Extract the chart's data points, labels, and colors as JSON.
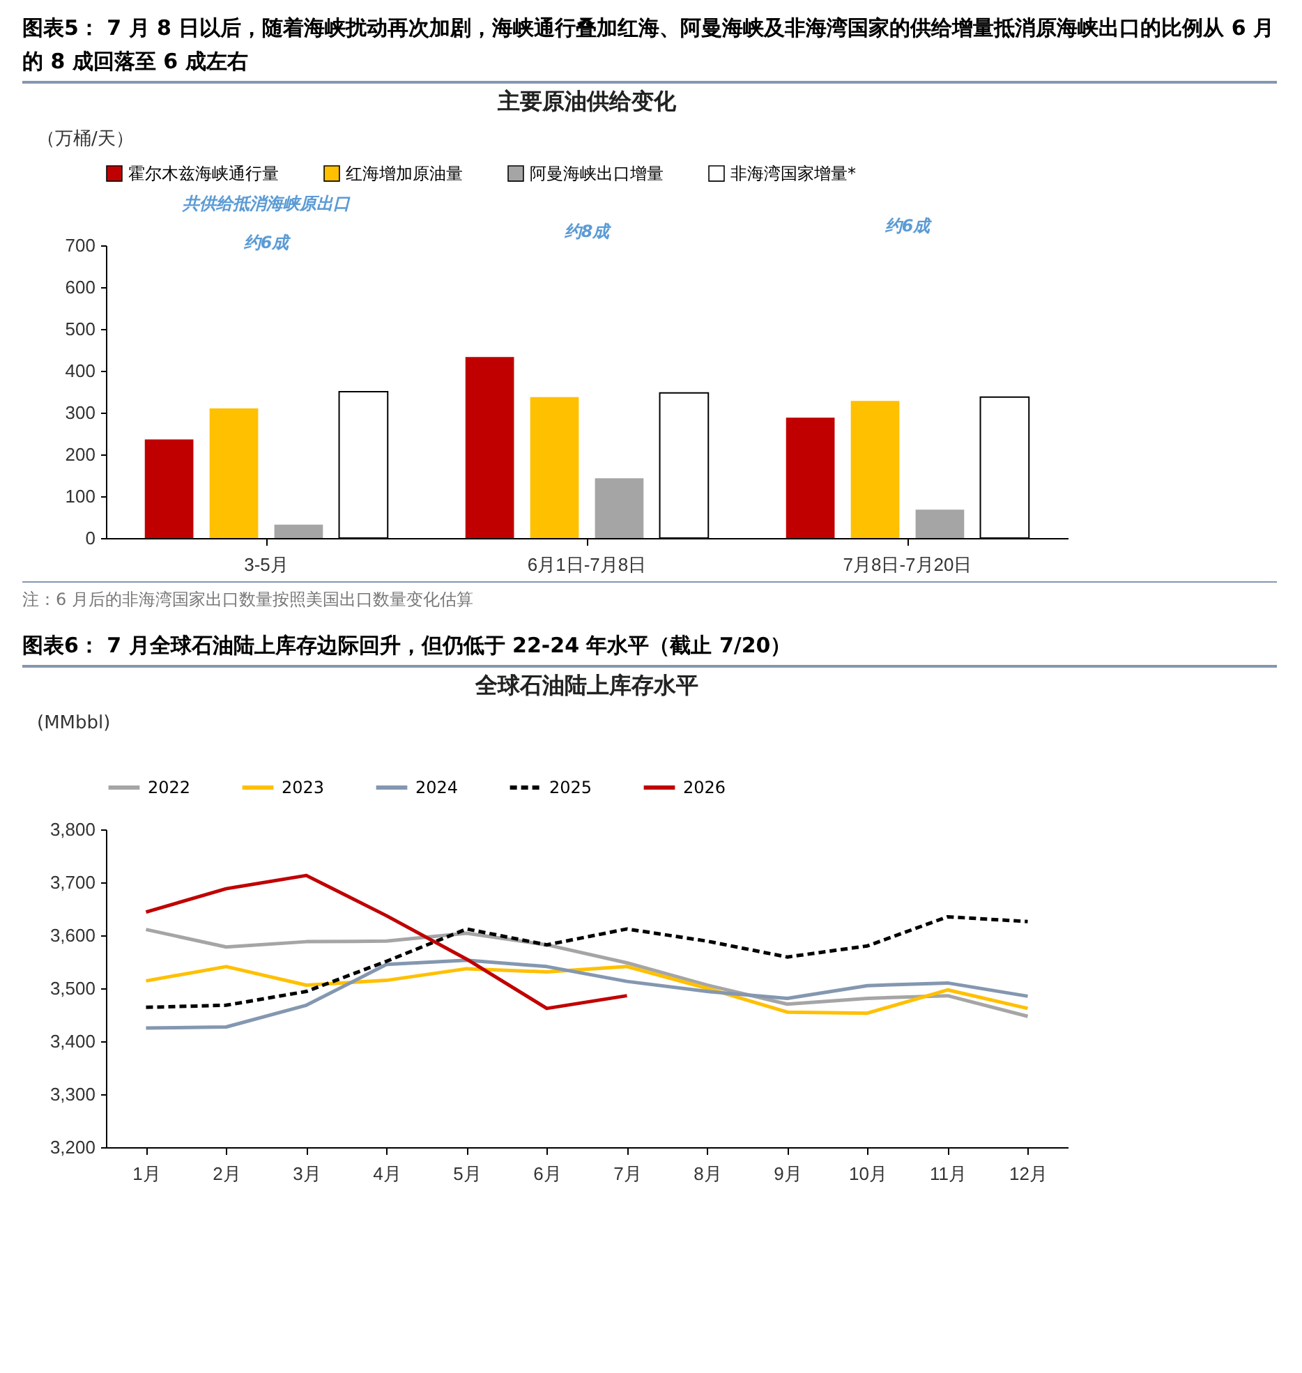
{
  "chart_data": [
    {
      "type": "bar",
      "title": "图表5：  7 月 8 日以后，随着海峡扰动再次加剧，海峡通行叠加红海、阿曼海峡及非海湾国家的供给增量抵消原海峡出口的比例从 6 月的 8 成回落至 6 成左右",
      "subtitle": "主要原油供给变化",
      "ylabel": "（万桶/天）",
      "categories": [
        "3-5月",
        "6月1日-7月8日",
        "7月8日-7月20日"
      ],
      "series": [
        {
          "name": "霍尔木兹海峡通行量",
          "color": "#c00000",
          "values": [
            236,
            433,
            288
          ]
        },
        {
          "name": "红海增加原油量",
          "color": "#ffc000",
          "values": [
            310,
            337,
            328
          ]
        },
        {
          "name": "阿曼海峡出口增量",
          "color": "#a5a5a5",
          "values": [
            32,
            143,
            68
          ]
        },
        {
          "name": "非海湾国家增量*",
          "color": "#ffffff",
          "values": [
            350,
            347,
            337
          ]
        }
      ],
      "ylim": [
        0,
        700
      ],
      "yticks": [
        0,
        100,
        200,
        300,
        400,
        500,
        600,
        700
      ],
      "grid": false,
      "legend": "top",
      "annotations": [
        "共供给抵消海峡原出口",
        "约6成",
        "约8成",
        "约6成",
        "注：6 月后的非海湾国家出口数量按照美国出口数量变化估算"
      ]
    },
    {
      "type": "line",
      "title": "图表6：  7 月全球石油陆上库存边际回升，但仍低于 22-24 年水平（截止 7/20）",
      "subtitle": "全球石油陆上库存水平",
      "ylabel": "(MMbbl)",
      "categories": [
        "1月",
        "2月",
        "3月",
        "4月",
        "5月",
        "6月",
        "7月",
        "8月",
        "9月",
        "10月",
        "11月",
        "12月"
      ],
      "series": [
        {
          "name": "2022",
          "color": "#a5a5a5",
          "values": [
            3611,
            3578,
            3588,
            3589,
            3604,
            3582,
            3548,
            3506,
            3470,
            3481,
            3486,
            3447
          ]
        },
        {
          "name": "2023",
          "color": "#ffc000",
          "values": [
            3514,
            3541,
            3506,
            3515,
            3537,
            3531,
            3541,
            3500,
            3455,
            3453,
            3497,
            3462
          ]
        },
        {
          "name": "2024",
          "color": "#8497b0",
          "values": [
            3425,
            3427,
            3468,
            3545,
            3553,
            3541,
            3513,
            3494,
            3481,
            3505,
            3510,
            3485
          ]
        },
        {
          "name": "2025",
          "color": "#000000",
          "line_style": "dashed",
          "values": [
            3464,
            3468,
            3494,
            3551,
            3612,
            3582,
            3612,
            3589,
            3559,
            3580,
            3635,
            3626
          ]
        },
        {
          "name": "2026",
          "color": "#c00000",
          "values": [
            3644,
            3688,
            3713,
            3637,
            3555,
            3462,
            3486,
            null,
            null,
            null,
            null,
            null
          ]
        }
      ],
      "ylim": [
        3200,
        3800
      ],
      "yticks": [
        {
          "value": 3200,
          "label": "3,200"
        },
        {
          "value": 3300,
          "label": "3,300"
        },
        {
          "value": 3400,
          "label": "3,400"
        },
        {
          "value": 3500,
          "label": "3,500"
        },
        {
          "value": 3600,
          "label": "3,600"
        },
        {
          "value": 3700,
          "label": "3,700"
        },
        {
          "value": 3800,
          "label": "3,800"
        }
      ],
      "grid": false,
      "legend": "top",
      "line_style": "solid"
    }
  ]
}
